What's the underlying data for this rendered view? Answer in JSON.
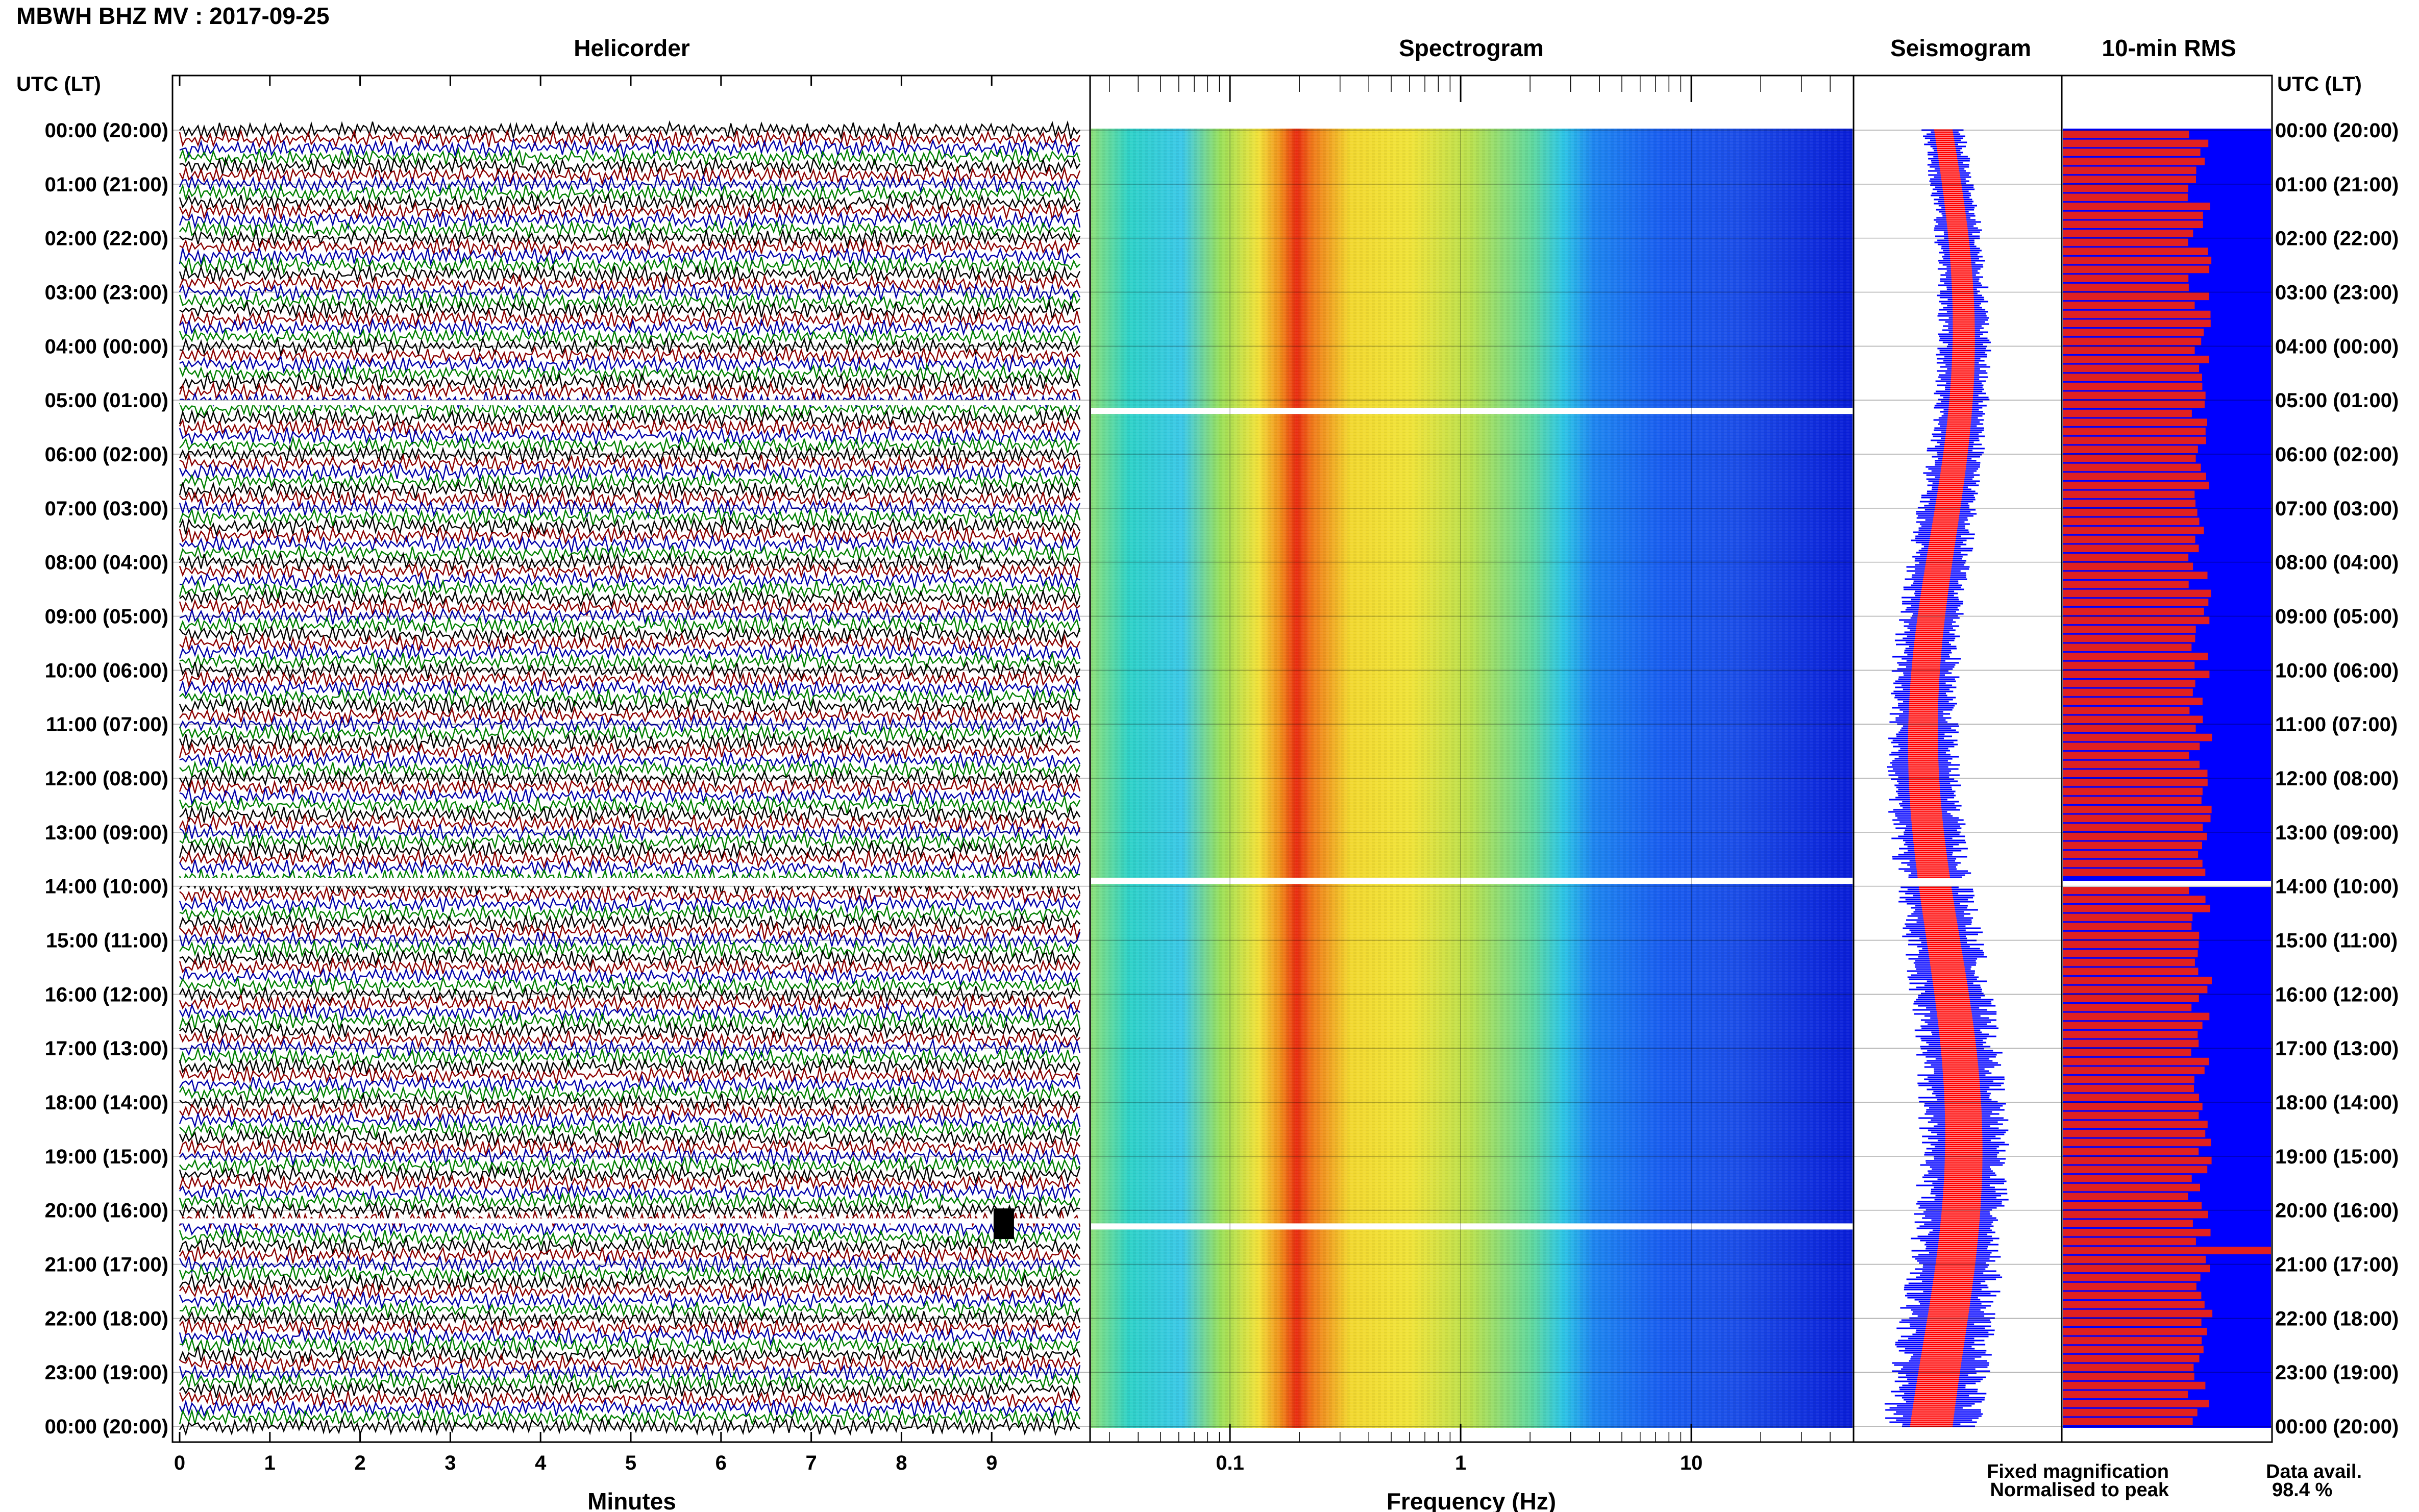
{
  "page": {
    "title": "MBWH BHZ MV : 2017-09-25",
    "utc_lt_label": "UTC (LT)",
    "data_avail_label": "Data avail.",
    "data_avail_value": "98.4 %"
  },
  "panels": {
    "helicorder": {
      "title": "Helicorder",
      "xlabel": "Minutes"
    },
    "spectrogram": {
      "title": "Spectrogram",
      "xlabel": "Frequency (Hz)"
    },
    "seismogram": {
      "title": "Seismogram"
    },
    "rms": {
      "title": "10-min RMS"
    }
  },
  "legend": {
    "fixed": {
      "label": "Fixed magnification",
      "color": "#0000ff"
    },
    "normalised": {
      "label": "Normalised to peak",
      "color": "#ff0000"
    }
  },
  "time_labels": [
    "00:00 (20:00)",
    "01:00 (21:00)",
    "02:00 (22:00)",
    "03:00 (23:00)",
    "04:00 (00:00)",
    "05:00 (01:00)",
    "06:00 (02:00)",
    "07:00 (03:00)",
    "08:00 (04:00)",
    "09:00 (05:00)",
    "10:00 (06:00)",
    "11:00 (07:00)",
    "12:00 (08:00)",
    "13:00 (09:00)",
    "14:00 (10:00)",
    "15:00 (11:00)",
    "16:00 (12:00)",
    "17:00 (13:00)",
    "18:00 (14:00)",
    "19:00 (15:00)",
    "20:00 (16:00)",
    "21:00 (17:00)",
    "22:00 (18:00)",
    "23:00 (19:00)",
    "00:00 (20:00)"
  ],
  "chart_data": [
    {
      "type": "line",
      "title": "Helicorder",
      "xlabel": "Minutes",
      "x_ticks": [
        "0",
        "1",
        "2",
        "3",
        "4",
        "5",
        "6",
        "7",
        "8",
        "9"
      ],
      "xlim": [
        0,
        10
      ],
      "ylim_hours": [
        0,
        24
      ],
      "trace_colors": [
        "#000000",
        "#8b0000",
        "#0000aa",
        "#008000"
      ],
      "traces_per_hour": 6,
      "gaps": [
        {
          "start_hour": 13.85,
          "end_hour": 14.0,
          "label": "data gap"
        },
        {
          "start_hour": 5.0,
          "end_hour": 5.05,
          "label": "data gap"
        },
        {
          "start_hour": 20.15,
          "end_hour": 20.2,
          "label": "data gap"
        }
      ],
      "events": [
        {
          "hour": 20.25,
          "minute": 9.1,
          "label": "transient"
        }
      ]
    },
    {
      "type": "heatmap",
      "title": "Spectrogram",
      "xlabel": "Frequency (Hz)",
      "x_scale": "log",
      "xlim": [
        0.025,
        50
      ],
      "x_ticks": [
        "0.1",
        "1",
        "10"
      ],
      "ylim_hours": [
        0,
        24
      ],
      "colormap": "jet",
      "dominant_band_hz": 0.2,
      "gaps_hours": [
        5.2,
        13.9,
        20.3
      ]
    },
    {
      "type": "line",
      "title": "Seismogram",
      "series": [
        {
          "name": "Fixed magnification",
          "color": "#0000ff"
        },
        {
          "name": "Normalised to peak",
          "color": "#ff0000"
        }
      ]
    },
    {
      "type": "bar",
      "title": "10-min RMS",
      "orientation": "horizontal",
      "bar_color": "#e02020",
      "background": "#0000ff",
      "bins_per_hour": 6,
      "ylim_hours": [
        0,
        24
      ],
      "relative_values_note": "",
      "peak_hour": 20.6
    }
  ]
}
